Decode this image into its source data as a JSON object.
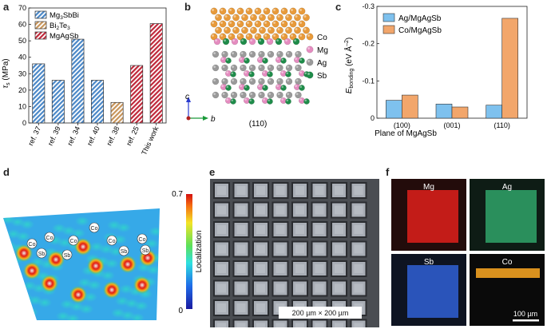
{
  "panels": {
    "a": "a",
    "b": "b",
    "c": "c",
    "d": "d",
    "e": "e",
    "f": "f"
  },
  "panel_a": {
    "chart_data": {
      "type": "bar",
      "ylabel_main": "τ",
      "ylabel_sub": "s",
      "ylabel_unit": " (MPa)",
      "ylim": [
        0,
        70
      ],
      "yticks": [
        0,
        10,
        20,
        30,
        40,
        50,
        60,
        70
      ],
      "categories": [
        "ref. 37",
        "ref. 39",
        "ref. 34",
        "ref. 40",
        "ref. 38",
        "ref. 25",
        "This work"
      ],
      "values": [
        36,
        26,
        51,
        26,
        12.5,
        35,
        60.5
      ],
      "groups": [
        "Mg3SbBi",
        "Mg3SbBi",
        "Mg3SbBi",
        "Mg3SbBi",
        "Bi2Te3",
        "MgAgSb",
        "MgAgSb"
      ],
      "legend": [
        {
          "key": "Mg3SbBi",
          "label_main": "Mg",
          "label_sub": "3",
          "label_rest": "SbBi",
          "color": "#4a87c7"
        },
        {
          "key": "Bi2Te3",
          "label_main": "Bi",
          "label_sub": "2",
          "label_rest": "Te",
          "label_sub2": "3",
          "color": "#c8955a"
        },
        {
          "key": "MgAgSb",
          "label_main": "MgAgSb",
          "label_sub": "",
          "label_rest": "",
          "color": "#c0283a"
        }
      ]
    }
  },
  "panel_b": {
    "legend": [
      {
        "label": "Co",
        "color": "#e89a3a"
      },
      {
        "label": "Mg",
        "color": "#e58cc0"
      },
      {
        "label": "Ag",
        "color": "#9a9a9a"
      },
      {
        "label": "Sb",
        "color": "#1f8c4a"
      }
    ],
    "axis_c": "c",
    "axis_b": "b",
    "plane": "(110)"
  },
  "panel_c": {
    "chart_data": {
      "type": "bar",
      "ylabel_main": "E",
      "ylabel_sub": "bonding",
      "ylabel_unit": " (eV Å",
      "ylabel_sup": "–2",
      "ylabel_end": ")",
      "xlabel": "Plane of MgAgSb",
      "ylim": [
        0,
        -0.3
      ],
      "yticks": [
        "0",
        "-0.1",
        "-0.2",
        "-0.3"
      ],
      "ytick_values": [
        0,
        -0.1,
        -0.2,
        -0.3
      ],
      "categories": [
        "(100)",
        "(001)",
        "(110)"
      ],
      "series": [
        {
          "name": "Ag/MgAgSb",
          "color": "#7ec1ee",
          "values": [
            -0.048,
            -0.038,
            -0.035
          ]
        },
        {
          "name": "Co/MgAgSb",
          "color": "#f2a66b",
          "values": [
            -0.062,
            -0.03,
            -0.268
          ]
        }
      ]
    }
  },
  "panel_d": {
    "colorbar_max": "0.7",
    "colorbar_min": "0",
    "colorbar_label": "Localization",
    "atom_labels": [
      "Co",
      "Co",
      "Co",
      "Co",
      "Co",
      "Co",
      "Sb",
      "Sb",
      "Sb",
      "Sb"
    ]
  },
  "panel_e": {
    "scale_label": "200 µm × 200 µm"
  },
  "panel_f": {
    "maps": [
      {
        "label": "Mg",
        "color": "#e0201c"
      },
      {
        "label": "Ag",
        "color": "#2fa36a"
      },
      {
        "label": "Sb",
        "color": "#2f5fd6"
      },
      {
        "label": "Co",
        "color": "#f0a020"
      }
    ],
    "scale_label": "100 µm"
  }
}
